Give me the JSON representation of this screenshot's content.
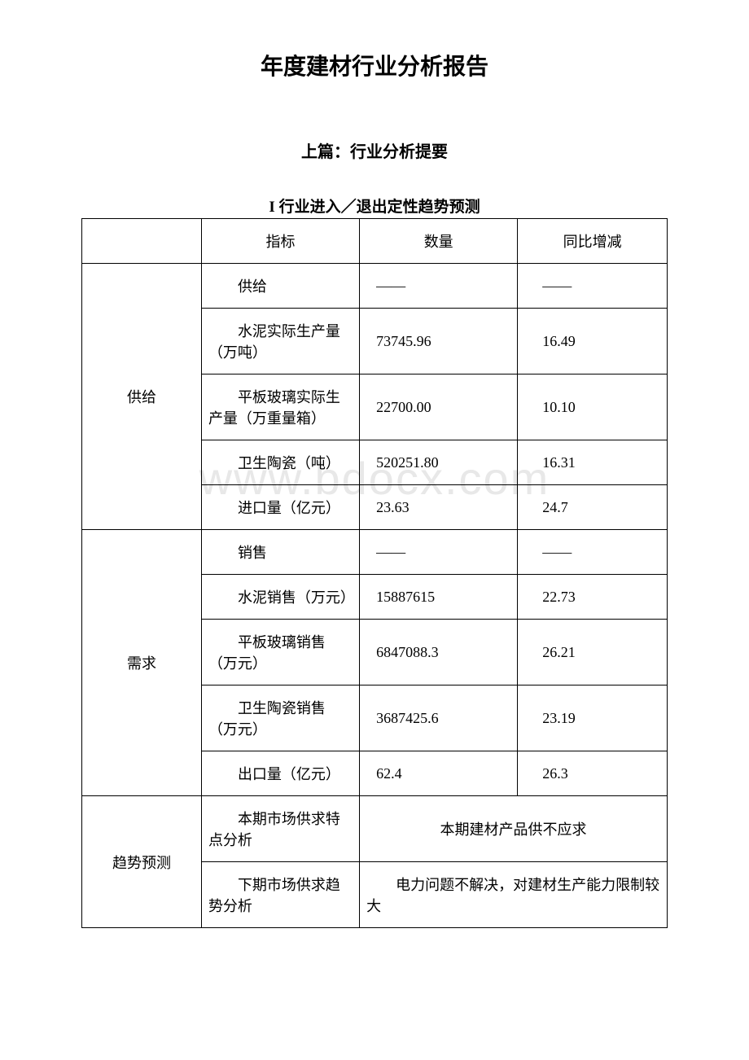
{
  "titles": {
    "main": "年度建材行业分析报告",
    "sub": "上篇：行业分析提要",
    "section": "I 行业进入／退出定性趋势预测"
  },
  "watermark": "www.bdocx.com",
  "table": {
    "headers": {
      "col1": "",
      "col2": "指标",
      "col3": "数量",
      "col4": "同比增减"
    },
    "groups": [
      {
        "label": "供给",
        "rows": [
          {
            "indicator": "供给",
            "quantity": "——",
            "change": "——"
          },
          {
            "indicator": "水泥实际生产量（万吨）",
            "quantity": "73745.96",
            "change": "16.49"
          },
          {
            "indicator": "平板玻璃实际生产量（万重量箱）",
            "quantity": "22700.00",
            "change": "10.10"
          },
          {
            "indicator": "卫生陶瓷（吨）",
            "quantity": "520251.80",
            "change": "16.31"
          },
          {
            "indicator": "进口量（亿元）",
            "quantity": "23.63",
            "change": "24.7"
          }
        ]
      },
      {
        "label": "需求",
        "rows": [
          {
            "indicator": "销售",
            "quantity": "——",
            "change": "——"
          },
          {
            "indicator": "水泥销售（万元）",
            "quantity": "15887615",
            "change": "22.73"
          },
          {
            "indicator": "平板玻璃销售（万元）",
            "quantity": "6847088.3",
            "change": "26.21"
          },
          {
            "indicator": "卫生陶瓷销售（万元）",
            "quantity": "3687425.6",
            "change": "23.19"
          },
          {
            "indicator": "出口量（亿元）",
            "quantity": "62.4",
            "change": "26.3"
          }
        ]
      },
      {
        "label": "趋势预测",
        "merged_rows": [
          {
            "indicator": "本期市场供求特点分析",
            "merged_text": "本期建材产品供不应求",
            "center": true
          },
          {
            "indicator": "下期市场供求趋势分析",
            "merged_text": "电力问题不解决，对建材生产能力限制较大",
            "center": false
          }
        ]
      }
    ]
  },
  "colors": {
    "background": "#ffffff",
    "text": "#000000",
    "border": "#000000",
    "watermark": "#e8e8e8"
  }
}
